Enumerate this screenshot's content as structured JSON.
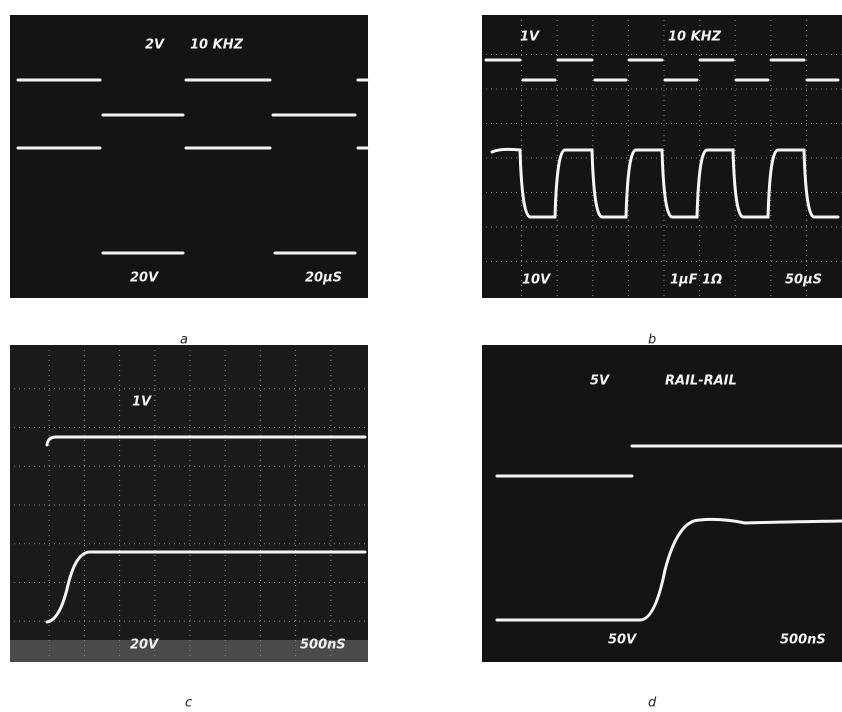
{
  "panels": [
    {
      "caption": "a",
      "labels": [
        "2V",
        "10 KHZ",
        "20V",
        "20µS"
      ]
    },
    {
      "caption": "b",
      "labels": [
        "1V",
        "10 KHZ",
        "10V",
        "1µF 1Ω",
        "50µS"
      ]
    },
    {
      "caption": "c",
      "labels": [
        "1V",
        "20V",
        "500nS"
      ]
    },
    {
      "caption": "d",
      "labels": [
        "5V",
        "RAIL-RAIL",
        "50V",
        "500nS"
      ]
    }
  ]
}
